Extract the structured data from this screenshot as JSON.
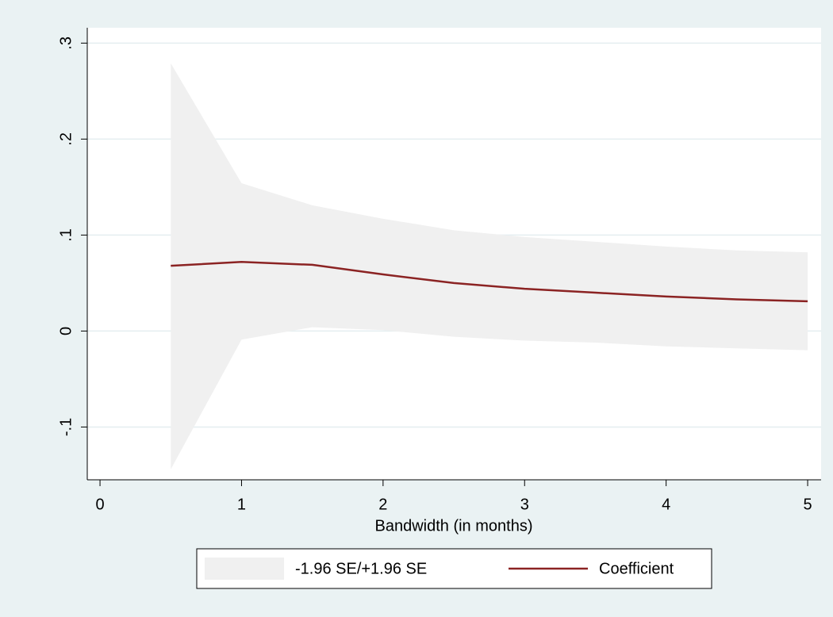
{
  "chart_data": {
    "type": "line",
    "x_label": "Bandwidth (in months)",
    "x": [
      0.5,
      1,
      1.5,
      2,
      2.5,
      3,
      3.5,
      4,
      4.5,
      5
    ],
    "series": [
      {
        "name": "-1.96 SE/+1.96 SE",
        "type": "band",
        "color": "#f0f0f0",
        "upper": [
          0.279,
          0.154,
          0.131,
          0.117,
          0.105,
          0.098,
          0.093,
          0.088,
          0.084,
          0.082
        ],
        "lower": [
          -0.144,
          -0.009,
          0.004,
          0.001,
          -0.006,
          -0.01,
          -0.012,
          -0.016,
          -0.018,
          -0.02
        ]
      },
      {
        "name": "Coefficient",
        "type": "line",
        "color": "#8b2323",
        "values": [
          0.068,
          0.072,
          0.069,
          0.059,
          0.05,
          0.044,
          0.04,
          0.036,
          0.033,
          0.031
        ]
      }
    ],
    "xlim": [
      -0.09,
      5.095
    ],
    "xticks": [
      0,
      1,
      2,
      3,
      4,
      5
    ],
    "ylim": [
      -0.155,
      0.316
    ],
    "yticks": [
      {
        "value": -0.1,
        "label": "-.1"
      },
      0,
      {
        "value": 0.1,
        "label": ".1"
      },
      {
        "value": 0.2,
        "label": ".2"
      },
      {
        "value": 0.3,
        "label": ".3"
      }
    ],
    "grid": true,
    "legend": "bottom"
  }
}
